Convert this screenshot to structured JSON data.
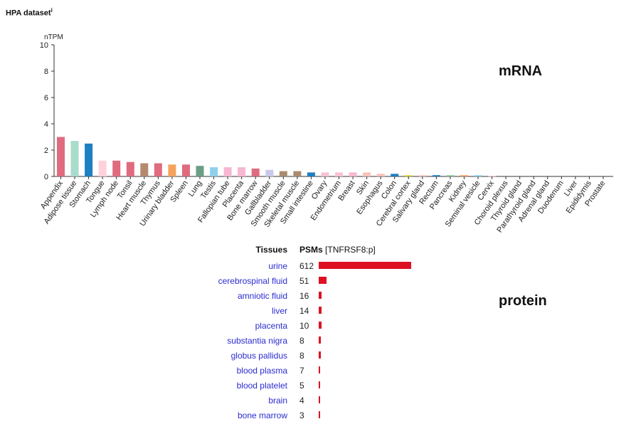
{
  "header": {
    "dataset_title": "HPA dataset",
    "info_marker": "i"
  },
  "mrna": {
    "label": "mRNA"
  },
  "protein": {
    "label": "protein",
    "col_tissues": "Tissues",
    "col_psms": "PSMs",
    "col_psms_sub": "[TNFRSF8:p]",
    "max_value": 612,
    "rows": [
      {
        "tissue": "urine",
        "psms": 612
      },
      {
        "tissue": "cerebrospinal fluid",
        "psms": 51
      },
      {
        "tissue": "amniotic fluid",
        "psms": 16
      },
      {
        "tissue": "liver",
        "psms": 14
      },
      {
        "tissue": "placenta",
        "psms": 10
      },
      {
        "tissue": "substantia nigra",
        "psms": 8
      },
      {
        "tissue": "globus pallidus",
        "psms": 8
      },
      {
        "tissue": "blood plasma",
        "psms": 7
      },
      {
        "tissue": "blood platelet",
        "psms": 5
      },
      {
        "tissue": "brain",
        "psms": 4
      },
      {
        "tissue": "bone marrow",
        "psms": 3
      }
    ],
    "bar_color": "#dd1122",
    "link_color": "#2b2bd1"
  },
  "chart_data": {
    "type": "bar",
    "title": "",
    "xlabel": "",
    "ylabel": "nTPM",
    "ylim": [
      0,
      10
    ],
    "yticks": [
      "0",
      "2",
      "4",
      "6",
      "8",
      "10"
    ],
    "grid": false,
    "categories": [
      "Appendix",
      "Adipose tissue",
      "Stomach",
      "Tongue",
      "Lymph node",
      "Tonsil",
      "Heart muscle",
      "Thymus",
      "Urinary bladder",
      "Spleen",
      "Lung",
      "Testis",
      "Fallopian tube",
      "Placenta",
      "Bone marrow",
      "Gallbladder",
      "Smooth muscle",
      "Skeletal muscle",
      "Small intestine",
      "Ovary",
      "Endometrium",
      "Breast",
      "Skin",
      "Esophagus",
      "Colon",
      "Cerebral cortex",
      "Salivary gland",
      "Rectum",
      "Pancreas",
      "Kidney",
      "Seminal vesicle",
      "Cervix",
      "Choroid plexus",
      "Thyroid gland",
      "Parathyroid gland",
      "Adrenal gland",
      "Duodenum",
      "Liver",
      "Epididymis",
      "Prostate"
    ],
    "values": [
      3.0,
      2.7,
      2.5,
      1.2,
      1.2,
      1.1,
      1.0,
      1.0,
      0.9,
      0.9,
      0.8,
      0.7,
      0.7,
      0.7,
      0.6,
      0.5,
      0.4,
      0.4,
      0.3,
      0.3,
      0.3,
      0.3,
      0.3,
      0.2,
      0.2,
      0.1,
      0.1,
      0.1,
      0.1,
      0.1,
      0.1,
      0.05,
      0.0,
      0.0,
      0.0,
      0.0,
      0.0,
      0.0,
      0.0,
      0.0
    ],
    "colors": [
      "#e06b7e",
      "#a8dccb",
      "#1e7fc2",
      "#ffd2db",
      "#e06b7e",
      "#e06b7e",
      "#b28a6e",
      "#e06b7e",
      "#f5a35c",
      "#e06b7e",
      "#6a9f86",
      "#8ed0ec",
      "#f7b6d2",
      "#f7b6d2",
      "#e06b7e",
      "#c8c8e8",
      "#a98c6f",
      "#a98c6f",
      "#1e7fc2",
      "#f7c1d3",
      "#f7c1d3",
      "#f7b6d2",
      "#f7c1b8",
      "#f7c1b8",
      "#1e7fc2",
      "#e3d240",
      "#f7c1b8",
      "#1e7fc2",
      "#8fc7a0",
      "#f5a35c",
      "#8ed0ec",
      "#f7c1d3",
      "#cccccc",
      "#cccccc",
      "#cccccc",
      "#cccccc",
      "#cccccc",
      "#cccccc",
      "#cccccc",
      "#cccccc"
    ]
  }
}
